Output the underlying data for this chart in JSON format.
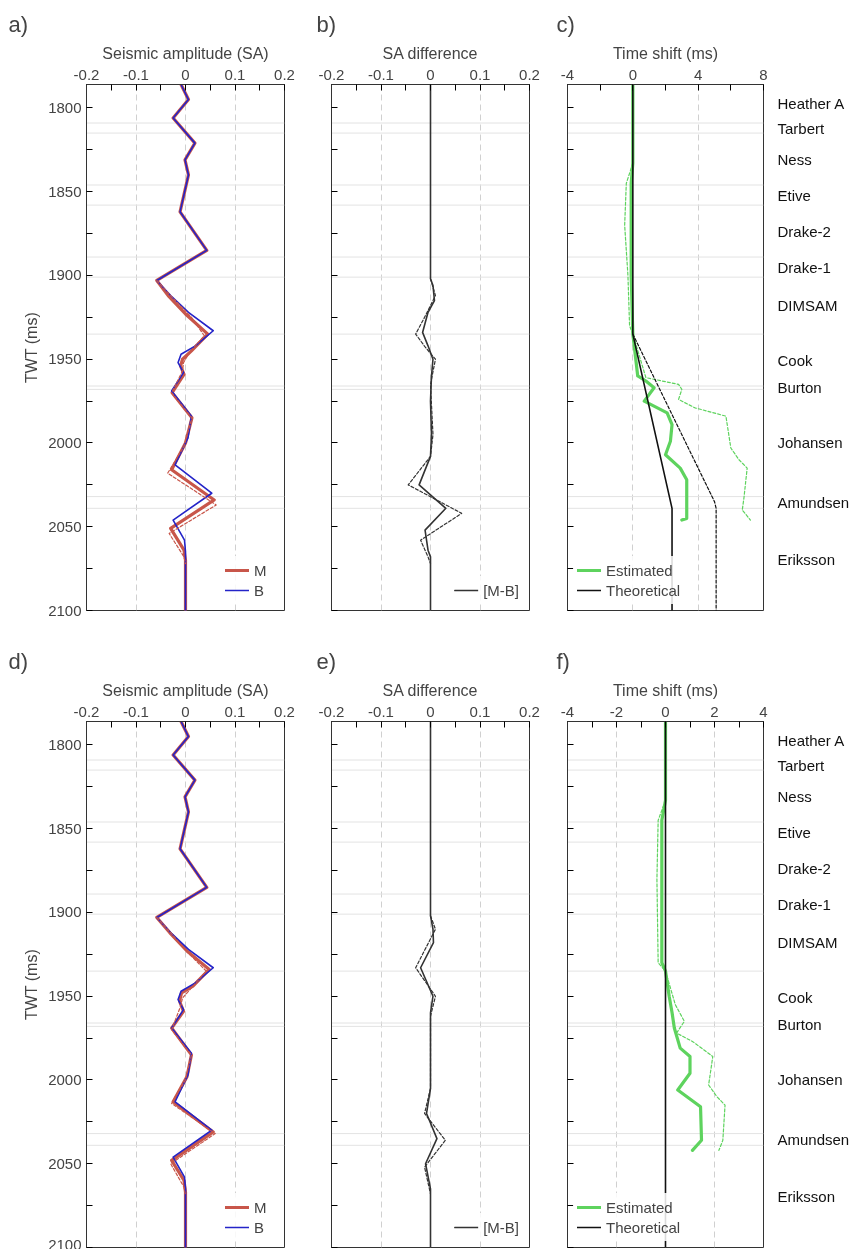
{
  "chart_data": [
    {
      "type": "line",
      "title": "a)",
      "xlabel": "Seismic amplitude (SA)",
      "ylabel": "TWT (ms)",
      "xlim": [
        -0.2,
        0.2
      ],
      "xticks": [
        -0.2,
        {
          "value": -0.15,
          "label": null
        },
        -0.1,
        {
          "value": -0.05,
          "label": null
        },
        0,
        {
          "value": 0.05,
          "label": null
        },
        0.1,
        {
          "value": 0.15,
          "label": null
        },
        0.2
      ],
      "ylim": [
        2100,
        1786
      ],
      "yticks": [
        1800,
        {
          "value": 1825,
          "label": null
        },
        1850,
        {
          "value": 1875,
          "label": null
        },
        1900,
        {
          "value": 1925,
          "label": null
        },
        1950,
        {
          "value": 1975,
          "label": null
        },
        2000,
        {
          "value": 2025,
          "label": null
        },
        2050,
        {
          "value": 2075,
          "label": null
        },
        2100
      ],
      "grid": "x",
      "legend": "bottom right",
      "ref_lines": [
        {
          "axis": "y",
          "value": 1809,
          "color": "#e3e3e3"
        },
        {
          "axis": "y",
          "value": 1815,
          "color": "#e3e3e3"
        },
        {
          "axis": "y",
          "value": 1846,
          "color": "#e3e3e3"
        },
        {
          "axis": "y",
          "value": 1858,
          "color": "#e3e3e3"
        },
        {
          "axis": "y",
          "value": 1889,
          "color": "#e3e3e3"
        },
        {
          "axis": "y",
          "value": 1901,
          "color": "#e3e3e3"
        },
        {
          "axis": "y",
          "value": 1935,
          "color": "#e3e3e3"
        },
        {
          "axis": "y",
          "value": 1966,
          "color": "#e3e3e3"
        },
        {
          "axis": "y",
          "value": 1968,
          "color": "#e3e3e3"
        },
        {
          "axis": "y",
          "value": 2032,
          "color": "#e3e3e3"
        },
        {
          "axis": "y",
          "value": 2039,
          "color": "#e3e3e3"
        }
      ],
      "series": [
        {
          "name": "M",
          "color": "#c8564a",
          "line_style": "solid",
          "x": [
            -0.009,
            0.006,
            -0.025,
            0.019,
            -0.001,
            0.006,
            -0.011,
            0.043,
            -0.058,
            -0.035,
            0.0,
            0.045,
            0.012,
            -0.006,
            -0.01,
            -0.003,
            -0.027,
            0.013,
            0.0,
            -0.028,
            0.058,
            -0.03,
            -0.003,
            0,
            0
          ],
          "values": [
            1786,
            1795,
            1806,
            1821,
            1831,
            1840,
            1862,
            1885,
            1903,
            1912,
            1923,
            1935,
            1945,
            1950,
            1954,
            1959,
            1970,
            1985,
            2000,
            2016,
            2034,
            2051,
            2064,
            2070,
            2100
          ]
        },
        {
          "name": "B",
          "color": "#2424c8",
          "line_style": "solid",
          "x": [
            -0.009,
            0.006,
            -0.025,
            0.019,
            -0.001,
            0.006,
            -0.011,
            0.043,
            -0.058,
            -0.03,
            0.006,
            0.056,
            0.02,
            -0.009,
            -0.015,
            -0.004,
            -0.028,
            0.012,
            0.005,
            -0.021,
            0.053,
            -0.025,
            -0.002,
            0,
            0
          ],
          "values": [
            1786,
            1795,
            1806,
            1821,
            1831,
            1840,
            1862,
            1885,
            1903,
            1912,
            1922,
            1933,
            1942,
            1947,
            1952,
            1958,
            1969,
            1984,
            1997,
            2013,
            2030,
            2046,
            2058,
            2065,
            2100
          ]
        },
        {
          "color": "#c8564a",
          "line_style": "dashed",
          "x": [
            -0.058,
            -0.03,
            0.012,
            0.038,
            0.008,
            -0.004,
            -0.006,
            -0.028,
            0.013,
            -0.003,
            -0.036,
            0.062,
            -0.033,
            -0.003,
            0
          ],
          "values": [
            1903,
            1912,
            1925,
            1936,
            1946,
            1952,
            1957,
            1970,
            1985,
            2002,
            2018,
            2037,
            2054,
            2068,
            2072
          ]
        }
      ]
    },
    {
      "type": "line",
      "title": "b)",
      "xlabel": "SA difference",
      "xlim": [
        -0.2,
        0.2
      ],
      "xticks": [
        -0.2,
        {
          "value": -0.15,
          "label": null
        },
        -0.1,
        {
          "value": -0.05,
          "label": null
        },
        0,
        {
          "value": 0.05,
          "label": null
        },
        0.1,
        {
          "value": 0.15,
          "label": null
        },
        0.2
      ],
      "ylim": [
        2100,
        1786
      ],
      "yticks": [
        1800,
        {
          "value": 1825,
          "label": null
        },
        1850,
        {
          "value": 1875,
          "label": null
        },
        1900,
        {
          "value": 1925,
          "label": null
        },
        1950,
        {
          "value": 1975,
          "label": null
        },
        2000,
        {
          "value": 2025,
          "label": null
        },
        2050,
        {
          "value": 2075,
          "label": null
        },
        2100
      ],
      "tick_labels": "x",
      "grid": "x",
      "legend": "bottom right",
      "ref_lines": [
        {
          "axis": "y",
          "value": 1809,
          "color": "#e3e3e3"
        },
        {
          "axis": "y",
          "value": 1815,
          "color": "#e3e3e3"
        },
        {
          "axis": "y",
          "value": 1846,
          "color": "#e3e3e3"
        },
        {
          "axis": "y",
          "value": 1858,
          "color": "#e3e3e3"
        },
        {
          "axis": "y",
          "value": 1889,
          "color": "#e3e3e3"
        },
        {
          "axis": "y",
          "value": 1901,
          "color": "#e3e3e3"
        },
        {
          "axis": "y",
          "value": 1935,
          "color": "#e3e3e3"
        },
        {
          "axis": "y",
          "value": 1966,
          "color": "#e3e3e3"
        },
        {
          "axis": "y",
          "value": 1968,
          "color": "#e3e3e3"
        },
        {
          "axis": "y",
          "value": 2032,
          "color": "#e3e3e3"
        },
        {
          "axis": "y",
          "value": 2039,
          "color": "#e3e3e3"
        }
      ],
      "series": [
        {
          "name": "[M-B]",
          "color": "#333333",
          "line_style": "solid",
          "x": [
            0,
            0,
            0.005,
            0.008,
            -0.005,
            -0.016,
            -0.005,
            0.005,
            0.002,
            0,
            0.002,
            0,
            -0.023,
            0.031,
            -0.011,
            -0.005,
            0,
            0
          ],
          "values": [
            1786,
            1902,
            1906,
            1915,
            1922,
            1934,
            1942,
            1950,
            1960,
            1975,
            1995,
            2008,
            2025,
            2039,
            2052,
            2064,
            2068,
            2100
          ]
        },
        {
          "color": "#333333",
          "line_style": "dashed",
          "x": [
            0,
            0.01,
            -0.012,
            -0.03,
            -0.01,
            0.01,
            0,
            0.005,
            0,
            -0.045,
            0.063,
            -0.02,
            -0.005,
            0
          ],
          "values": [
            1902,
            1912,
            1925,
            1935,
            1943,
            1950,
            1965,
            1995,
            2008,
            2025,
            2042,
            2058,
            2068,
            2072
          ]
        }
      ]
    },
    {
      "type": "line",
      "title": "c)",
      "xlabel": "Time shift (ms)",
      "xlim": [
        -4,
        8
      ],
      "xticks": [
        -4,
        {
          "value": -2,
          "label": null
        },
        0,
        {
          "value": 2,
          "label": null
        },
        4,
        {
          "value": 6,
          "label": null
        },
        8
      ],
      "ylim": [
        2100,
        1786
      ],
      "yticks": [
        1800,
        {
          "value": 1825,
          "label": null
        },
        1850,
        {
          "value": 1875,
          "label": null
        },
        1900,
        {
          "value": 1925,
          "label": null
        },
        1950,
        {
          "value": 1975,
          "label": null
        },
        2000,
        {
          "value": 2025,
          "label": null
        },
        2050,
        {
          "value": 2075,
          "label": null
        },
        2100
      ],
      "tick_labels": "x",
      "grid": "x",
      "legend": "bottom left",
      "ref_lines": [
        {
          "axis": "y",
          "value": 1809,
          "color": "#e3e3e3"
        },
        {
          "axis": "y",
          "value": 1815,
          "color": "#e3e3e3"
        },
        {
          "axis": "y",
          "value": 1846,
          "color": "#e3e3e3"
        },
        {
          "axis": "y",
          "value": 1858,
          "color": "#e3e3e3"
        },
        {
          "axis": "y",
          "value": 1889,
          "color": "#e3e3e3"
        },
        {
          "axis": "y",
          "value": 1901,
          "color": "#e3e3e3"
        },
        {
          "axis": "y",
          "value": 1935,
          "color": "#e3e3e3"
        },
        {
          "axis": "y",
          "value": 1966,
          "color": "#e3e3e3"
        },
        {
          "axis": "y",
          "value": 1968,
          "color": "#e3e3e3"
        },
        {
          "axis": "y",
          "value": 2032,
          "color": "#e3e3e3"
        },
        {
          "axis": "y",
          "value": 2039,
          "color": "#e3e3e3"
        }
      ],
      "annotations": [
        "Heather A",
        "Tarbert",
        "Ness",
        "Etive",
        "Drake-2",
        "Drake-1",
        "DIMSAM",
        "Cook",
        "Burton",
        "Johansen",
        "Amundsen",
        "Eriksson"
      ],
      "series": [
        {
          "name": "Estimated",
          "color": "#5ed35e",
          "line_style": "solid",
          "x": [
            0,
            0,
            -0.1,
            -0.1,
            0,
            0.3,
            0.8,
            1.3,
            0.7,
            2.1,
            2.4,
            2.3,
            2.0,
            2.9,
            3.3,
            3.3,
            3.0
          ],
          "values": [
            1786,
            1833,
            1845,
            1900,
            1935,
            1960,
            1963,
            1967,
            1975,
            1982,
            1989,
            1999,
            2007,
            2015,
            2022,
            2045,
            2046
          ]
        },
        {
          "color": "#5ed35e",
          "line_style": "dashed",
          "x": [
            0,
            -0.4,
            -0.5,
            -0.3,
            -0.2,
            0,
            0.8,
            2.8,
            3.0,
            2.8,
            3.8,
            5.7,
            6.0,
            6.5,
            7.0,
            6.8,
            6.7,
            7.2
          ],
          "values": [
            1833,
            1845,
            1870,
            1900,
            1930,
            1935,
            1961,
            1965,
            1968,
            1974,
            1979,
            1984,
            2003,
            2010,
            2015,
            2033,
            2040,
            2046
          ]
        },
        {
          "name": "Theoretical",
          "color": "#111111",
          "line_style": "solid",
          "x": [
            0,
            0,
            2.4,
            2.4
          ],
          "values": [
            1786,
            1935,
            2039,
            2100
          ]
        },
        {
          "color": "#111111",
          "line_style": "dashed",
          "x": [
            0,
            5.0,
            5.1,
            5.1
          ],
          "values": [
            1935,
            2035,
            2039,
            2100
          ]
        }
      ]
    },
    {
      "type": "line",
      "title": "d)",
      "xlabel": "Seismic amplitude (SA)",
      "ylabel": "TWT (ms)",
      "xlim": [
        -0.2,
        0.2
      ],
      "xticks": [
        -0.2,
        {
          "value": -0.15,
          "label": null
        },
        -0.1,
        {
          "value": -0.05,
          "label": null
        },
        0,
        {
          "value": 0.05,
          "label": null
        },
        0.1,
        {
          "value": 0.15,
          "label": null
        },
        0.2
      ],
      "ylim": [
        2100,
        1786
      ],
      "yticks": [
        1800,
        {
          "value": 1825,
          "label": null
        },
        1850,
        {
          "value": 1875,
          "label": null
        },
        1900,
        {
          "value": 1925,
          "label": null
        },
        1950,
        {
          "value": 1975,
          "label": null
        },
        2000,
        {
          "value": 2025,
          "label": null
        },
        2050,
        {
          "value": 2075,
          "label": null
        },
        2100
      ],
      "grid": "x",
      "legend": "bottom right",
      "ref_lines": [
        {
          "axis": "y",
          "value": 1809,
          "color": "#e3e3e3"
        },
        {
          "axis": "y",
          "value": 1815,
          "color": "#e3e3e3"
        },
        {
          "axis": "y",
          "value": 1846,
          "color": "#e3e3e3"
        },
        {
          "axis": "y",
          "value": 1858,
          "color": "#e3e3e3"
        },
        {
          "axis": "y",
          "value": 1889,
          "color": "#e3e3e3"
        },
        {
          "axis": "y",
          "value": 1901,
          "color": "#e3e3e3"
        },
        {
          "axis": "y",
          "value": 1935,
          "color": "#e3e3e3"
        },
        {
          "axis": "y",
          "value": 1966,
          "color": "#e3e3e3"
        },
        {
          "axis": "y",
          "value": 1968,
          "color": "#e3e3e3"
        },
        {
          "axis": "y",
          "value": 2032,
          "color": "#e3e3e3"
        },
        {
          "axis": "y",
          "value": 2039,
          "color": "#e3e3e3"
        }
      ],
      "series": [
        {
          "name": "M",
          "color": "#c8564a",
          "line_style": "solid",
          "x": [
            -0.009,
            0.006,
            -0.025,
            0.019,
            -0.001,
            0.006,
            -0.011,
            0.043,
            -0.058,
            -0.032,
            0.003,
            0.048,
            0.015,
            -0.008,
            -0.012,
            -0.004,
            -0.028,
            0.012,
            0.003,
            -0.025,
            0.056,
            -0.028,
            -0.003,
            0,
            0
          ],
          "values": [
            1786,
            1795,
            1806,
            1821,
            1831,
            1840,
            1862,
            1885,
            1903,
            1912,
            1923,
            1934,
            1944,
            1948,
            1953,
            1959,
            1969,
            1985,
            1998,
            2013,
            2031,
            2048,
            2060,
            2067,
            2100
          ]
        },
        {
          "name": "B",
          "color": "#2424c8",
          "line_style": "solid",
          "x": [
            -0.009,
            0.006,
            -0.025,
            0.019,
            -0.001,
            0.006,
            -0.011,
            0.043,
            -0.058,
            -0.03,
            0.006,
            0.056,
            0.02,
            -0.009,
            -0.015,
            -0.004,
            -0.028,
            0.012,
            0.005,
            -0.021,
            0.053,
            -0.025,
            -0.002,
            0,
            0
          ],
          "values": [
            1786,
            1795,
            1806,
            1821,
            1831,
            1840,
            1862,
            1885,
            1903,
            1912,
            1922,
            1933,
            1942,
            1947,
            1952,
            1958,
            1969,
            1984,
            1997,
            2013,
            2030,
            2046,
            2058,
            2065,
            2100
          ]
        },
        {
          "color": "#c8564a",
          "line_style": "dashed",
          "x": [
            -0.058,
            -0.03,
            0.005,
            0.042,
            0.012,
            -0.006,
            -0.01,
            -0.028,
            0.012,
            0.0,
            -0.028,
            0.06,
            -0.03,
            -0.003,
            0
          ],
          "values": [
            1903,
            1912,
            1924,
            1935,
            1945,
            1951,
            1956,
            1970,
            1985,
            2000,
            2014,
            2032,
            2050,
            2064,
            2069
          ]
        }
      ]
    },
    {
      "type": "line",
      "title": "e)",
      "xlabel": "SA difference",
      "xlim": [
        -0.2,
        0.2
      ],
      "xticks": [
        -0.2,
        {
          "value": -0.15,
          "label": null
        },
        -0.1,
        {
          "value": -0.05,
          "label": null
        },
        0,
        {
          "value": 0.05,
          "label": null
        },
        0.1,
        {
          "value": 0.15,
          "label": null
        },
        0.2
      ],
      "ylim": [
        2100,
        1786
      ],
      "yticks": [
        1800,
        {
          "value": 1825,
          "label": null
        },
        1850,
        {
          "value": 1875,
          "label": null
        },
        1900,
        {
          "value": 1925,
          "label": null
        },
        1950,
        {
          "value": 1975,
          "label": null
        },
        2000,
        {
          "value": 2025,
          "label": null
        },
        2050,
        {
          "value": 2075,
          "label": null
        },
        2100
      ],
      "tick_labels": "x",
      "grid": "x",
      "legend": "bottom right",
      "ref_lines": [
        {
          "axis": "y",
          "value": 1809,
          "color": "#e3e3e3"
        },
        {
          "axis": "y",
          "value": 1815,
          "color": "#e3e3e3"
        },
        {
          "axis": "y",
          "value": 1846,
          "color": "#e3e3e3"
        },
        {
          "axis": "y",
          "value": 1858,
          "color": "#e3e3e3"
        },
        {
          "axis": "y",
          "value": 1889,
          "color": "#e3e3e3"
        },
        {
          "axis": "y",
          "value": 1901,
          "color": "#e3e3e3"
        },
        {
          "axis": "y",
          "value": 1935,
          "color": "#e3e3e3"
        },
        {
          "axis": "y",
          "value": 1966,
          "color": "#e3e3e3"
        },
        {
          "axis": "y",
          "value": 1968,
          "color": "#e3e3e3"
        },
        {
          "axis": "y",
          "value": 2032,
          "color": "#e3e3e3"
        },
        {
          "axis": "y",
          "value": 2039,
          "color": "#e3e3e3"
        }
      ],
      "series": [
        {
          "name": "[M-B]",
          "color": "#333333",
          "line_style": "solid",
          "x": [
            0,
            0,
            0.005,
            0.006,
            -0.02,
            0.005,
            0,
            0,
            -0.008,
            0.013,
            -0.01,
            0,
            0
          ],
          "values": [
            1786,
            1902,
            1910,
            1918,
            1933,
            1950,
            1960,
            2005,
            2020,
            2035,
            2050,
            2065,
            2100
          ]
        },
        {
          "color": "#333333",
          "line_style": "dashed",
          "x": [
            0,
            0.01,
            -0.03,
            0.01,
            0,
            0,
            -0.012,
            0.03,
            -0.012,
            0
          ],
          "values": [
            1902,
            1910,
            1933,
            1950,
            1962,
            2005,
            2020,
            2036,
            2052,
            2068
          ]
        }
      ]
    },
    {
      "type": "line",
      "title": "f)",
      "xlabel": "Time shift (ms)",
      "xlim": [
        -4,
        4
      ],
      "xticks": [
        -4,
        {
          "value": -3,
          "label": null
        },
        -2,
        {
          "value": -1,
          "label": null
        },
        0,
        {
          "value": 1,
          "label": null
        },
        2,
        {
          "value": 3,
          "label": null
        },
        4
      ],
      "ylim": [
        2100,
        1786
      ],
      "yticks": [
        1800,
        {
          "value": 1825,
          "label": null
        },
        1850,
        {
          "value": 1875,
          "label": null
        },
        1900,
        {
          "value": 1925,
          "label": null
        },
        1950,
        {
          "value": 1975,
          "label": null
        },
        2000,
        {
          "value": 2025,
          "label": null
        },
        2050,
        {
          "value": 2075,
          "label": null
        },
        2100
      ],
      "tick_labels": "x",
      "grid": "x",
      "legend": "bottom left",
      "ref_lines": [
        {
          "axis": "y",
          "value": 1809,
          "color": "#e3e3e3"
        },
        {
          "axis": "y",
          "value": 1815,
          "color": "#e3e3e3"
        },
        {
          "axis": "y",
          "value": 1846,
          "color": "#e3e3e3"
        },
        {
          "axis": "y",
          "value": 1858,
          "color": "#e3e3e3"
        },
        {
          "axis": "y",
          "value": 1889,
          "color": "#e3e3e3"
        },
        {
          "axis": "y",
          "value": 1901,
          "color": "#e3e3e3"
        },
        {
          "axis": "y",
          "value": 1935,
          "color": "#e3e3e3"
        },
        {
          "axis": "y",
          "value": 1966,
          "color": "#e3e3e3"
        },
        {
          "axis": "y",
          "value": 1968,
          "color": "#e3e3e3"
        },
        {
          "axis": "y",
          "value": 2032,
          "color": "#e3e3e3"
        },
        {
          "axis": "y",
          "value": 2039,
          "color": "#e3e3e3"
        }
      ],
      "annotations": [
        "Heather A",
        "Tarbert",
        "Ness",
        "Etive",
        "Drake-2",
        "Drake-1",
        "DIMSAM",
        "Cook",
        "Burton",
        "Johansen",
        "Amundsen",
        "Eriksson"
      ],
      "series": [
        {
          "name": "Estimated",
          "color": "#5ed35e",
          "line_style": "solid",
          "x": [
            0,
            0,
            -0.15,
            -0.15,
            0,
            0.15,
            0.27,
            0.36,
            0.6,
            1.0,
            1.0,
            0.5,
            1.43,
            1.47,
            1.1
          ],
          "values": [
            1786,
            1833,
            1845,
            1930,
            1935,
            1950,
            1960,
            1969,
            1981,
            1986,
            1996,
            2006,
            2016,
            2036,
            2042
          ]
        },
        {
          "color": "#5ed35e",
          "line_style": "dashed",
          "x": [
            0,
            -0.3,
            -0.35,
            -0.3,
            0,
            0.4,
            0.77,
            0.45,
            1.1,
            1.93,
            1.76,
            2.1,
            2.43,
            2.34,
            2.18
          ],
          "values": [
            1833,
            1845,
            1880,
            1930,
            1935,
            1955,
            1965,
            1972,
            1977,
            1986,
            2003,
            2010,
            2015,
            2036,
            2042
          ]
        },
        {
          "name": "Theoretical",
          "color": "#111111",
          "line_style": "solid",
          "x": [
            0,
            0
          ],
          "values": [
            1786,
            2100
          ]
        }
      ]
    }
  ]
}
